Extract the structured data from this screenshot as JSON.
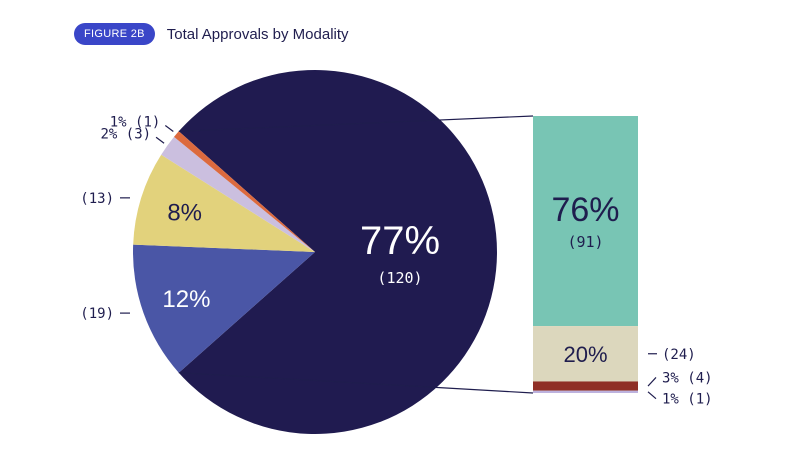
{
  "header": {
    "badge": "FIGURE 2B",
    "title": "Total Approvals by Modality"
  },
  "chart_data": [
    {
      "type": "pie",
      "title": "Total Approvals by Modality",
      "slices": [
        {
          "value": 120,
          "pct_label": "77%",
          "count_label": "(120)",
          "color": "#201b50"
        },
        {
          "value": 19,
          "pct_label": "12%",
          "count_label": "(19)",
          "color": "#4a56a6"
        },
        {
          "value": 13,
          "pct_label": "8%",
          "count_label": "(13)",
          "color": "#e2d27c"
        },
        {
          "value": 3,
          "pct_label": "2%",
          "count_label": "2% (3)",
          "color": "#cbbfdf"
        },
        {
          "value": 1,
          "pct_label": "1%",
          "count_label": "1% (1)",
          "color": "#dc6a3e"
        }
      ]
    },
    {
      "type": "bar",
      "stacked": true,
      "breakdown_of": "77% (120)",
      "segments": [
        {
          "value": 91,
          "pct_label": "76%",
          "count_label": "(91)",
          "color": "#78c5b4"
        },
        {
          "value": 24,
          "pct_label": "20%",
          "count_label": "(24)",
          "color": "#dcd7bd"
        },
        {
          "value": 4,
          "pct_label": "3%",
          "count_label": "3% (4)",
          "color": "#8f2f25"
        },
        {
          "value": 1,
          "pct_label": "1%",
          "count_label": "1% (1)",
          "color": "#bdb2de"
        }
      ]
    }
  ]
}
